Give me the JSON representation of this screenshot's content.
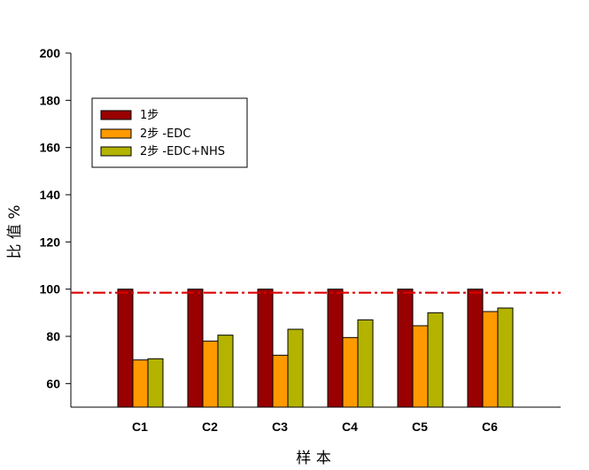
{
  "chart_data": {
    "type": "bar",
    "title": "",
    "xlabel": "样 本",
    "ylabel": "比 值 %",
    "ylim": [
      50,
      200
    ],
    "yticks": [
      60,
      80,
      100,
      120,
      140,
      160,
      180,
      200
    ],
    "categories": [
      "C1",
      "C2",
      "C3",
      "C4",
      "C5",
      "C6"
    ],
    "series": [
      {
        "name": "1步",
        "color": "#990000",
        "values": [
          100,
          100,
          100,
          100,
          100,
          100
        ]
      },
      {
        "name": "2步 -EDC",
        "color": "#ff9900",
        "values": [
          70,
          78,
          72,
          79.5,
          84.5,
          90.5
        ]
      },
      {
        "name": "2步 -EDC+NHS",
        "color": "#b3b300",
        "values": [
          70.5,
          80.5,
          83,
          87,
          90,
          92
        ]
      }
    ],
    "reference_line": {
      "value": 98.5,
      "style": "dash-dot",
      "color": "#dd0000"
    },
    "legend_position": "top-left",
    "grid": false
  }
}
